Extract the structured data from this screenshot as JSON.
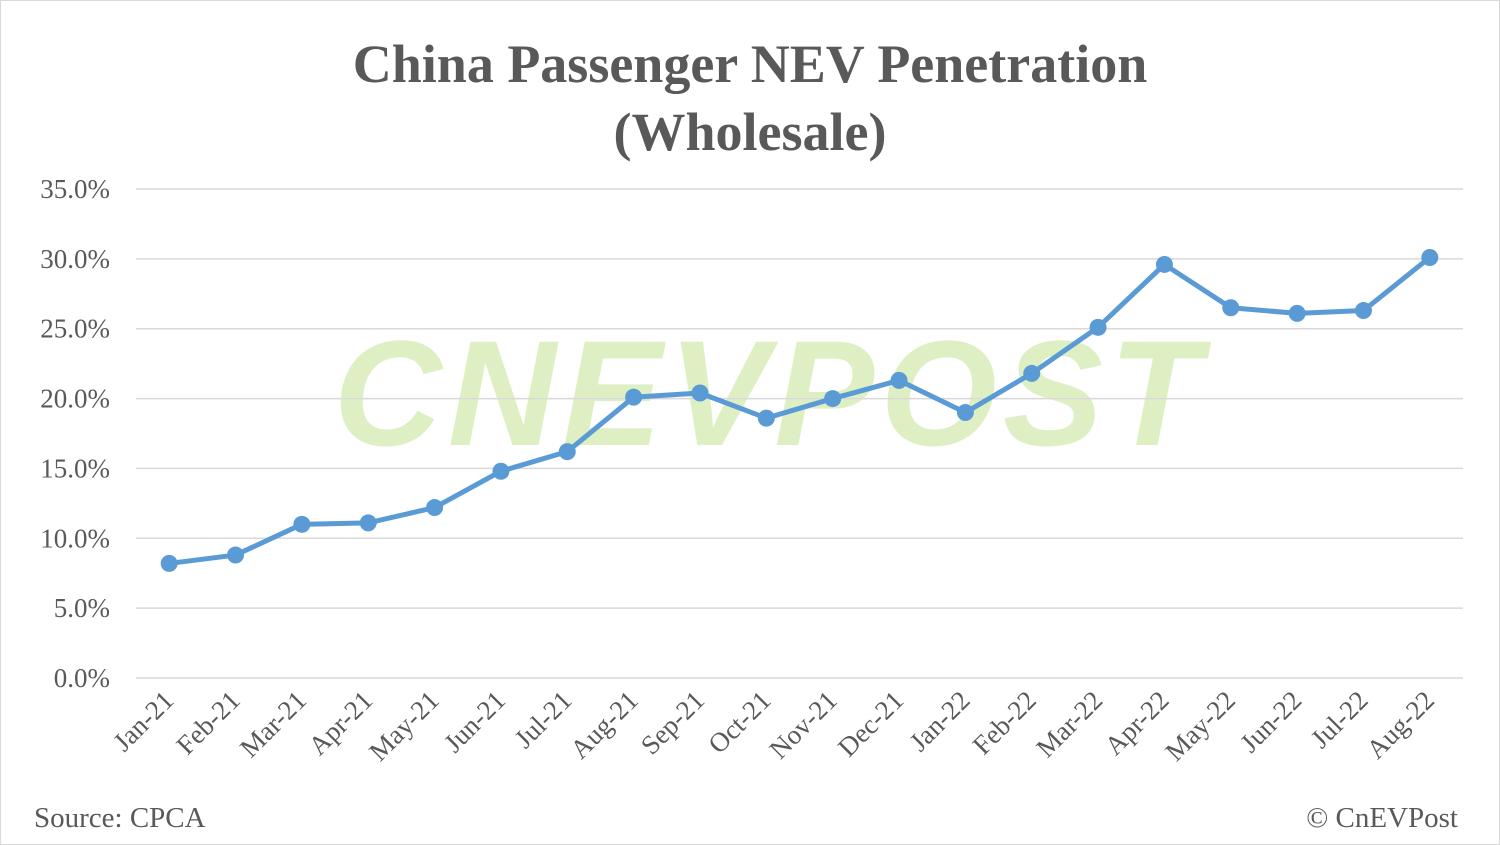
{
  "chart_data": {
    "type": "line",
    "title": "China Passenger NEV Penetration",
    "subtitle": "(Wholesale)",
    "xlabel": "",
    "ylabel": "",
    "categories": [
      "Jan-21",
      "Feb-21",
      "Mar-21",
      "Apr-21",
      "May-21",
      "Jun-21",
      "Jul-21",
      "Aug-21",
      "Sep-21",
      "Oct-21",
      "Nov-21",
      "Dec-21",
      "Jan-22",
      "Feb-22",
      "Mar-22",
      "Apr-22",
      "May-22",
      "Jun-22",
      "Jul-22",
      "Aug-22"
    ],
    "series": [
      {
        "values": [
          8.2,
          8.8,
          11.0,
          11.1,
          12.2,
          14.8,
          16.2,
          20.1,
          20.4,
          18.6,
          20.0,
          21.3,
          19.0,
          21.8,
          25.1,
          29.6,
          26.5,
          26.1,
          26.3,
          30.1
        ],
        "color": "#5b9bd5"
      }
    ],
    "ylim": [
      0,
      35
    ],
    "yticks": [
      "0.0%",
      "5.0%",
      "10.0%",
      "15.0%",
      "20.0%",
      "25.0%",
      "30.0%",
      "35.0%"
    ],
    "grid": true,
    "legend": "none"
  },
  "source": "Source:  CPCA",
  "copyright": "© CnEVPost",
  "watermark": "CNEVPOST"
}
